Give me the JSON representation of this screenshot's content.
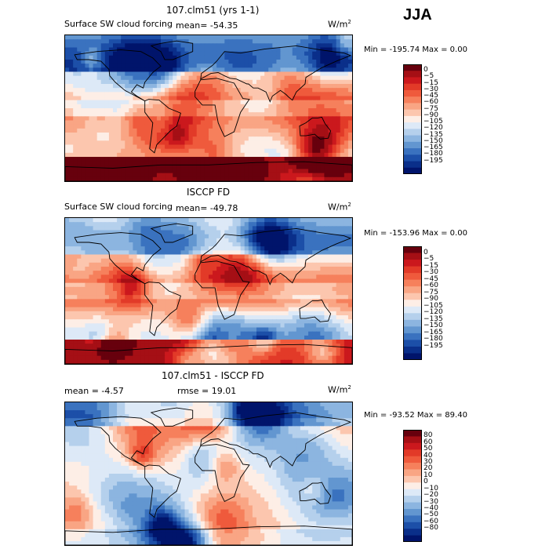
{
  "season": "JJA",
  "panels": [
    {
      "title": "107.clm51 (yrs 1-1)",
      "field_label": "Surface SW cloud forcing",
      "mean_text": "mean= -54.35",
      "units": "W/m",
      "units_sup": "2",
      "minmax": "Min = -195.74 Max =    0.00",
      "colorbar": {
        "colors": [
          "#67000d",
          "#a50f15",
          "#cb181d",
          "#e23a28",
          "#ef5a3c",
          "#f6805c",
          "#f9a584",
          "#fcc6ae",
          "#fdeee6",
          "#dde9f7",
          "#b5d0ec",
          "#8cb5e0",
          "#6296d0",
          "#3a72bf",
          "#1c4fa8",
          "#0a2f8a",
          "#00146b"
        ],
        "labels": [
          "0",
          "−5",
          "−15",
          "−30",
          "−45",
          "−60",
          "−75",
          "−90",
          "−105",
          "−120",
          "−135",
          "−150",
          "−165",
          "−180",
          "−195"
        ]
      }
    },
    {
      "title": "ISCCP FD",
      "field_label": "Surface SW cloud forcing",
      "mean_text": "mean= -49.78",
      "units": "W/m",
      "units_sup": "2",
      "minmax": "Min = -153.96 Max =    0.00",
      "colorbar": {
        "colors": [
          "#67000d",
          "#a50f15",
          "#cb181d",
          "#e23a28",
          "#ef5a3c",
          "#f6805c",
          "#f9a584",
          "#fcc6ae",
          "#fdeee6",
          "#dde9f7",
          "#b5d0ec",
          "#8cb5e0",
          "#6296d0",
          "#3a72bf",
          "#1c4fa8",
          "#0a2f8a",
          "#00146b"
        ],
        "labels": [
          "0",
          "−5",
          "−15",
          "−30",
          "−45",
          "−60",
          "−75",
          "−90",
          "−105",
          "−120",
          "−135",
          "−150",
          "−165",
          "−180",
          "−195"
        ]
      }
    },
    {
      "title": "107.clm51 - ISCCP FD",
      "field_label": "mean =   -4.57",
      "mean_text": "rmse =   19.01",
      "units": "W/m",
      "units_sup": "2",
      "minmax": "Min = -93.52 Max =   89.40",
      "colorbar": {
        "colors": [
          "#67000d",
          "#a50f15",
          "#cb181d",
          "#e23a28",
          "#ef5a3c",
          "#f6805c",
          "#f9a584",
          "#fcc6ae",
          "#fdeee6",
          "#dde9f7",
          "#b5d0ec",
          "#8cb5e0",
          "#6296d0",
          "#3a72bf",
          "#1c4fa8",
          "#0a2f8a",
          "#00146b"
        ],
        "labels": [
          "80",
          "60",
          "50",
          "40",
          "30",
          "20",
          "10",
          "0",
          "−10",
          "−20",
          "−30",
          "−40",
          "−50",
          "−60",
          "−80"
        ]
      }
    }
  ],
  "chart_data": [
    {
      "type": "heatmap",
      "title": "107.clm51 (yrs 1-1)",
      "subtitle": "Surface SW cloud forcing",
      "units": "W/m2",
      "mean": -54.35,
      "min": -195.74,
      "max": 0.0,
      "levels": [
        0,
        -5,
        -15,
        -30,
        -45,
        -60,
        -75,
        -90,
        -105,
        -120,
        -135,
        -150,
        -165,
        -180,
        -195
      ]
    },
    {
      "type": "heatmap",
      "title": "ISCCP FD",
      "subtitle": "Surface SW cloud forcing",
      "units": "W/m2",
      "mean": -49.78,
      "min": -153.96,
      "max": 0.0,
      "levels": [
        0,
        -5,
        -15,
        -30,
        -45,
        -60,
        -75,
        -90,
        -105,
        -120,
        -135,
        -150,
        -165,
        -180,
        -195
      ]
    },
    {
      "type": "heatmap",
      "title": "107.clm51 - ISCCP FD",
      "units": "W/m2",
      "mean": -4.57,
      "rmse": 19.01,
      "min": -93.52,
      "max": 89.4,
      "levels": [
        80,
        60,
        50,
        40,
        30,
        20,
        10,
        0,
        -10,
        -20,
        -30,
        -40,
        -50,
        -60,
        -80
      ]
    }
  ]
}
